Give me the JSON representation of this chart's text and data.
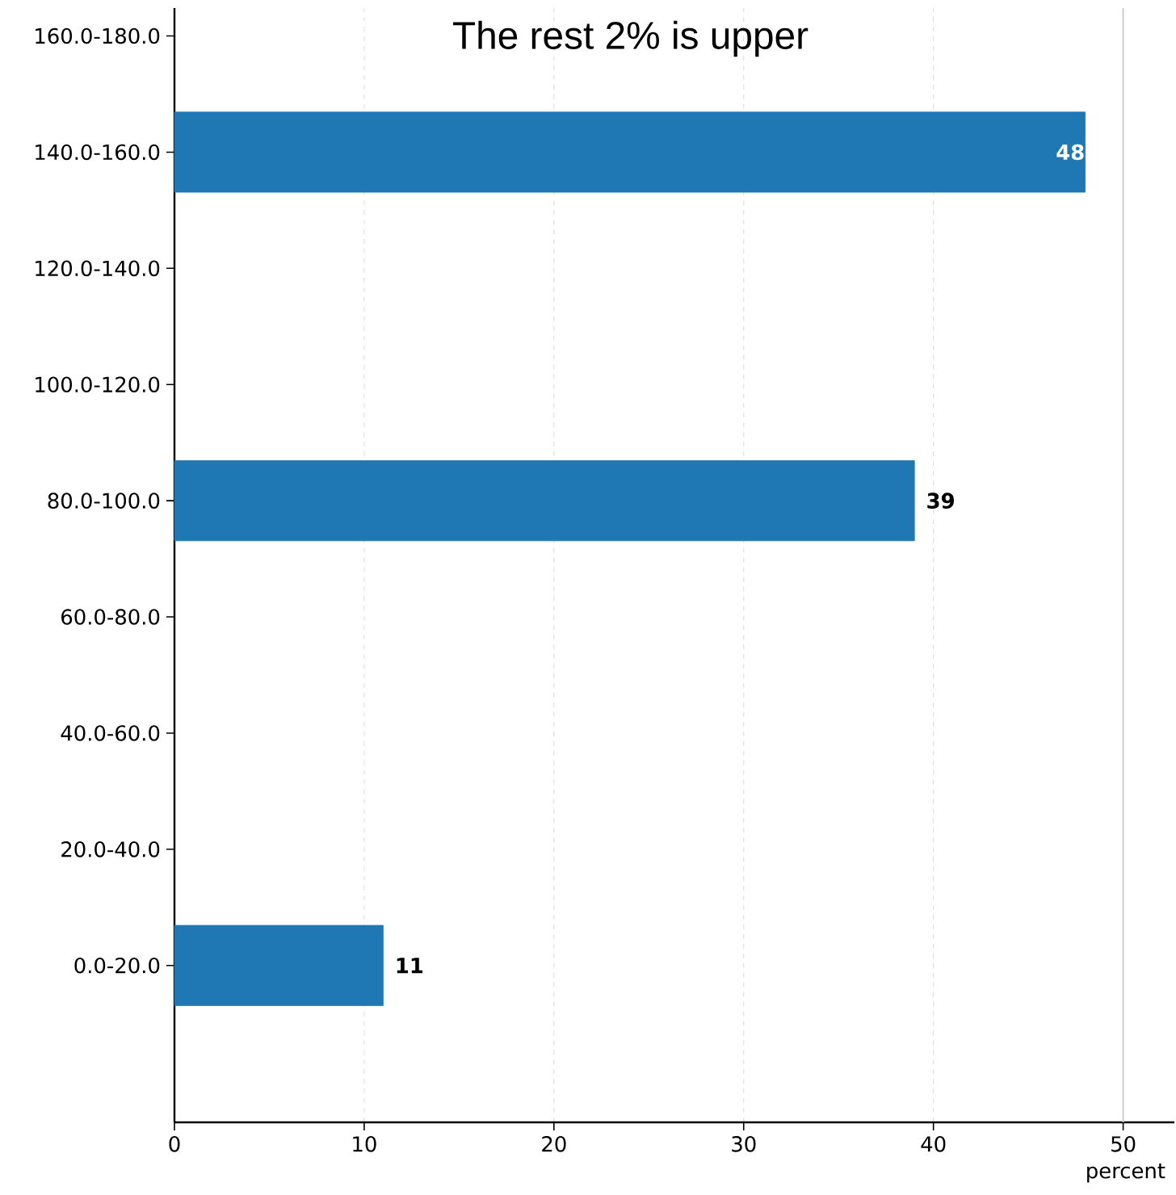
{
  "chart_data": {
    "type": "bar",
    "orientation": "horizontal",
    "title": "The rest 2% is upper",
    "xlabel": "percent",
    "categories": [
      "160.0-180.0",
      "140.0-160.0",
      "120.0-140.0",
      "100.0-120.0",
      "80.0-100.0",
      "60.0-80.0",
      "40.0-60.0",
      "20.0-40.0",
      "0.0-20.0"
    ],
    "values": [
      null,
      48,
      null,
      null,
      39,
      null,
      null,
      null,
      11
    ],
    "value_labels": [
      null,
      "48",
      null,
      null,
      "39",
      null,
      null,
      null,
      "11"
    ],
    "color": "#1f77b4",
    "xlim": [
      0,
      52.7
    ],
    "xticks": [
      0,
      10,
      20,
      30,
      40,
      50
    ],
    "grid": "x",
    "ref_lines": [
      {
        "axis": "x",
        "value": 50,
        "color": "#cccccc",
        "line_style": "solid"
      }
    ]
  }
}
